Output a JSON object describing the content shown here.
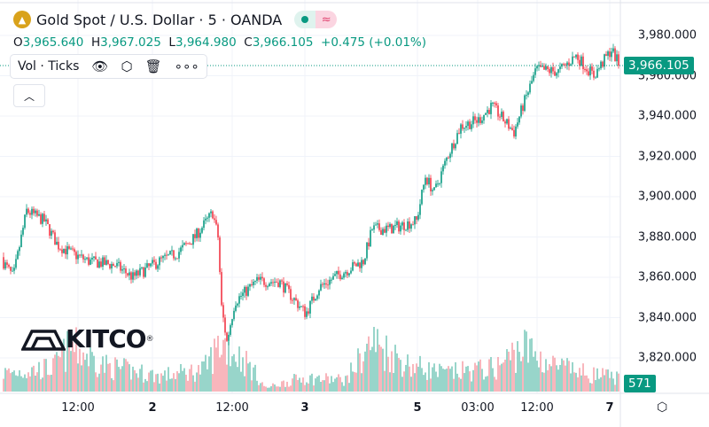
{
  "header": {
    "title": "Gold Spot / U.S. Dollar · 5 · OANDA",
    "logo_icon": "gold-bars-icon",
    "status_icon": "market-open-dot-icon",
    "delay_icon": "approx-icon"
  },
  "ohlc": {
    "o_label": "O",
    "o": "3,965.640",
    "h_label": "H",
    "h": "3,967.025",
    "l_label": "L",
    "l": "3,964.980",
    "c_label": "C",
    "c": "3,966.105",
    "change": "+0.475 (+0.01%)"
  },
  "volume_legend": {
    "label": "Vol · Ticks",
    "icons": [
      "eye-icon",
      "settings-icon",
      "trash-icon",
      "more-icon"
    ]
  },
  "collapse_icon": "chevron-up-icon",
  "watermark": {
    "text": "KITCO",
    "mark": "®"
  },
  "current_price_label": "3,966.105",
  "current_volume_label": "571",
  "colors": {
    "up": "#089981",
    "down": "#f23645",
    "vol_up": "#7fcbbd",
    "vol_down": "#f7a5ac"
  },
  "chart_data": {
    "type": "candlestick",
    "title": "Gold Spot / U.S. Dollar · 5 · OANDA",
    "ylim": [
      3805,
      3990
    ],
    "y_ticks": [
      "3,980.000",
      "3,960.000",
      "3,940.000",
      "3,920.000",
      "3,900.000",
      "3,880.000",
      "3,860.000",
      "3,840.000",
      "3,820.000"
    ],
    "y_tick_values": [
      3980,
      3960,
      3940,
      3920,
      3900,
      3880,
      3860,
      3840,
      3820
    ],
    "x_ticks": [
      {
        "label": "12:00",
        "bar": 88,
        "bold": false
      },
      {
        "label": "2",
        "bar": 172,
        "bold": true
      },
      {
        "label": "12:00",
        "bar": 262,
        "bold": false
      },
      {
        "label": "3",
        "bar": 344,
        "bold": true
      },
      {
        "label": "5",
        "bar": 471,
        "bold": true
      },
      {
        "label": "03:00",
        "bar": 539,
        "bold": false
      },
      {
        "label": "12:00",
        "bar": 606,
        "bold": false
      },
      {
        "label": "7",
        "bar": 688,
        "bold": true
      }
    ],
    "price_path": [
      [
        0,
        3870
      ],
      [
        15,
        3860
      ],
      [
        30,
        3893
      ],
      [
        50,
        3888
      ],
      [
        65,
        3876
      ],
      [
        80,
        3872
      ],
      [
        100,
        3868
      ],
      [
        130,
        3866
      ],
      [
        150,
        3860
      ],
      [
        180,
        3868
      ],
      [
        200,
        3872
      ],
      [
        220,
        3880
      ],
      [
        240,
        3892
      ],
      [
        246,
        3880
      ],
      [
        250,
        3845
      ],
      [
        256,
        3828
      ],
      [
        265,
        3848
      ],
      [
        290,
        3858
      ],
      [
        315,
        3858
      ],
      [
        330,
        3850
      ],
      [
        345,
        3842
      ],
      [
        360,
        3855
      ],
      [
        385,
        3862
      ],
      [
        410,
        3868
      ],
      [
        420,
        3884
      ],
      [
        440,
        3884
      ],
      [
        470,
        3888
      ],
      [
        480,
        3910
      ],
      [
        490,
        3902
      ],
      [
        505,
        3920
      ],
      [
        520,
        3935
      ],
      [
        540,
        3938
      ],
      [
        555,
        3945
      ],
      [
        580,
        3932
      ],
      [
        590,
        3945
      ],
      [
        605,
        3963
      ],
      [
        630,
        3962
      ],
      [
        650,
        3970
      ],
      [
        670,
        3960
      ],
      [
        690,
        3973
      ],
      [
        698,
        3966
      ]
    ],
    "volume_path": [
      [
        0,
        200
      ],
      [
        60,
        260
      ],
      [
        80,
        500
      ],
      [
        120,
        280
      ],
      [
        180,
        170
      ],
      [
        230,
        240
      ],
      [
        250,
        550
      ],
      [
        280,
        300
      ],
      [
        300,
        40
      ],
      [
        340,
        150
      ],
      [
        390,
        130
      ],
      [
        420,
        550
      ],
      [
        460,
        300
      ],
      [
        500,
        200
      ],
      [
        560,
        260
      ],
      [
        590,
        500
      ],
      [
        620,
        300
      ],
      [
        660,
        200
      ],
      [
        698,
        150
      ]
    ],
    "last_volume": 571
  }
}
